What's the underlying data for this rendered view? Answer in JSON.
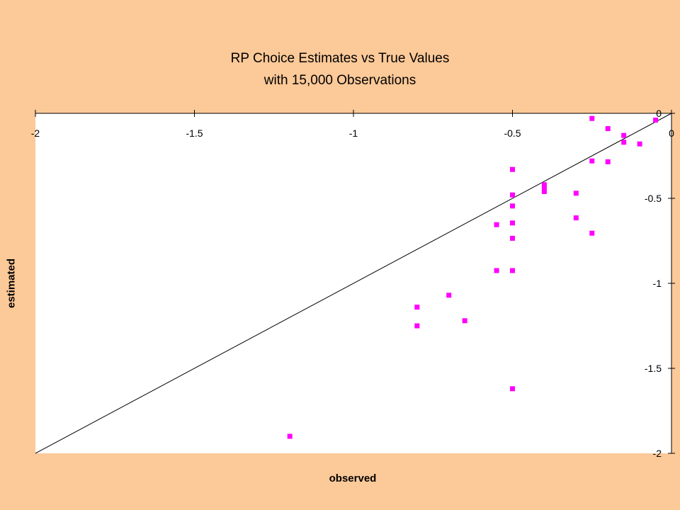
{
  "chart_data": {
    "type": "scatter",
    "title": "RP Choice Estimates vs True Values",
    "subtitle": "with 15,000 Observations",
    "xlabel": "observed",
    "ylabel": "estimated",
    "xlim": [
      -2,
      0
    ],
    "ylim": [
      -2,
      0
    ],
    "x_ticks": [
      -2,
      -1.5,
      -1,
      -0.5,
      0
    ],
    "y_ticks": [
      0,
      -0.5,
      -1,
      -1.5,
      -2
    ],
    "x_tick_labels": [
      "-2",
      "-1.5",
      "-1",
      "-0.5",
      "0"
    ],
    "y_tick_labels": [
      "0",
      "-0.5",
      "-1",
      "-1.5",
      "-2"
    ],
    "grid": false,
    "reference_line": {
      "from": [
        -2,
        -2
      ],
      "to": [
        0,
        0
      ]
    },
    "colors": {
      "background": "#fcc998",
      "plot_area": "#ffffff",
      "points": "#ff00ff",
      "line": "#000000"
    },
    "points": [
      {
        "x": -0.25,
        "y": -0.03
      },
      {
        "x": -0.2,
        "y": -0.09
      },
      {
        "x": -0.15,
        "y": -0.13
      },
      {
        "x": -0.15,
        "y": -0.17
      },
      {
        "x": -0.1,
        "y": -0.18
      },
      {
        "x": -0.05,
        "y": -0.04
      },
      {
        "x": -0.25,
        "y": -0.28
      },
      {
        "x": -0.2,
        "y": -0.285
      },
      {
        "x": -0.5,
        "y": -0.33
      },
      {
        "x": -0.4,
        "y": -0.42
      },
      {
        "x": -0.4,
        "y": -0.44
      },
      {
        "x": -0.4,
        "y": -0.46
      },
      {
        "x": -0.3,
        "y": -0.47
      },
      {
        "x": -0.5,
        "y": -0.48
      },
      {
        "x": -0.5,
        "y": -0.545
      },
      {
        "x": -0.3,
        "y": -0.615
      },
      {
        "x": -0.5,
        "y": -0.645
      },
      {
        "x": -0.55,
        "y": -0.655
      },
      {
        "x": -0.25,
        "y": -0.705
      },
      {
        "x": -0.5,
        "y": -0.735
      },
      {
        "x": -0.55,
        "y": -0.925
      },
      {
        "x": -0.5,
        "y": -0.925
      },
      {
        "x": -0.7,
        "y": -1.07
      },
      {
        "x": -0.8,
        "y": -1.14
      },
      {
        "x": -0.65,
        "y": -1.22
      },
      {
        "x": -0.8,
        "y": -1.25
      },
      {
        "x": -0.5,
        "y": -1.62
      },
      {
        "x": -1.2,
        "y": -1.9
      }
    ]
  }
}
